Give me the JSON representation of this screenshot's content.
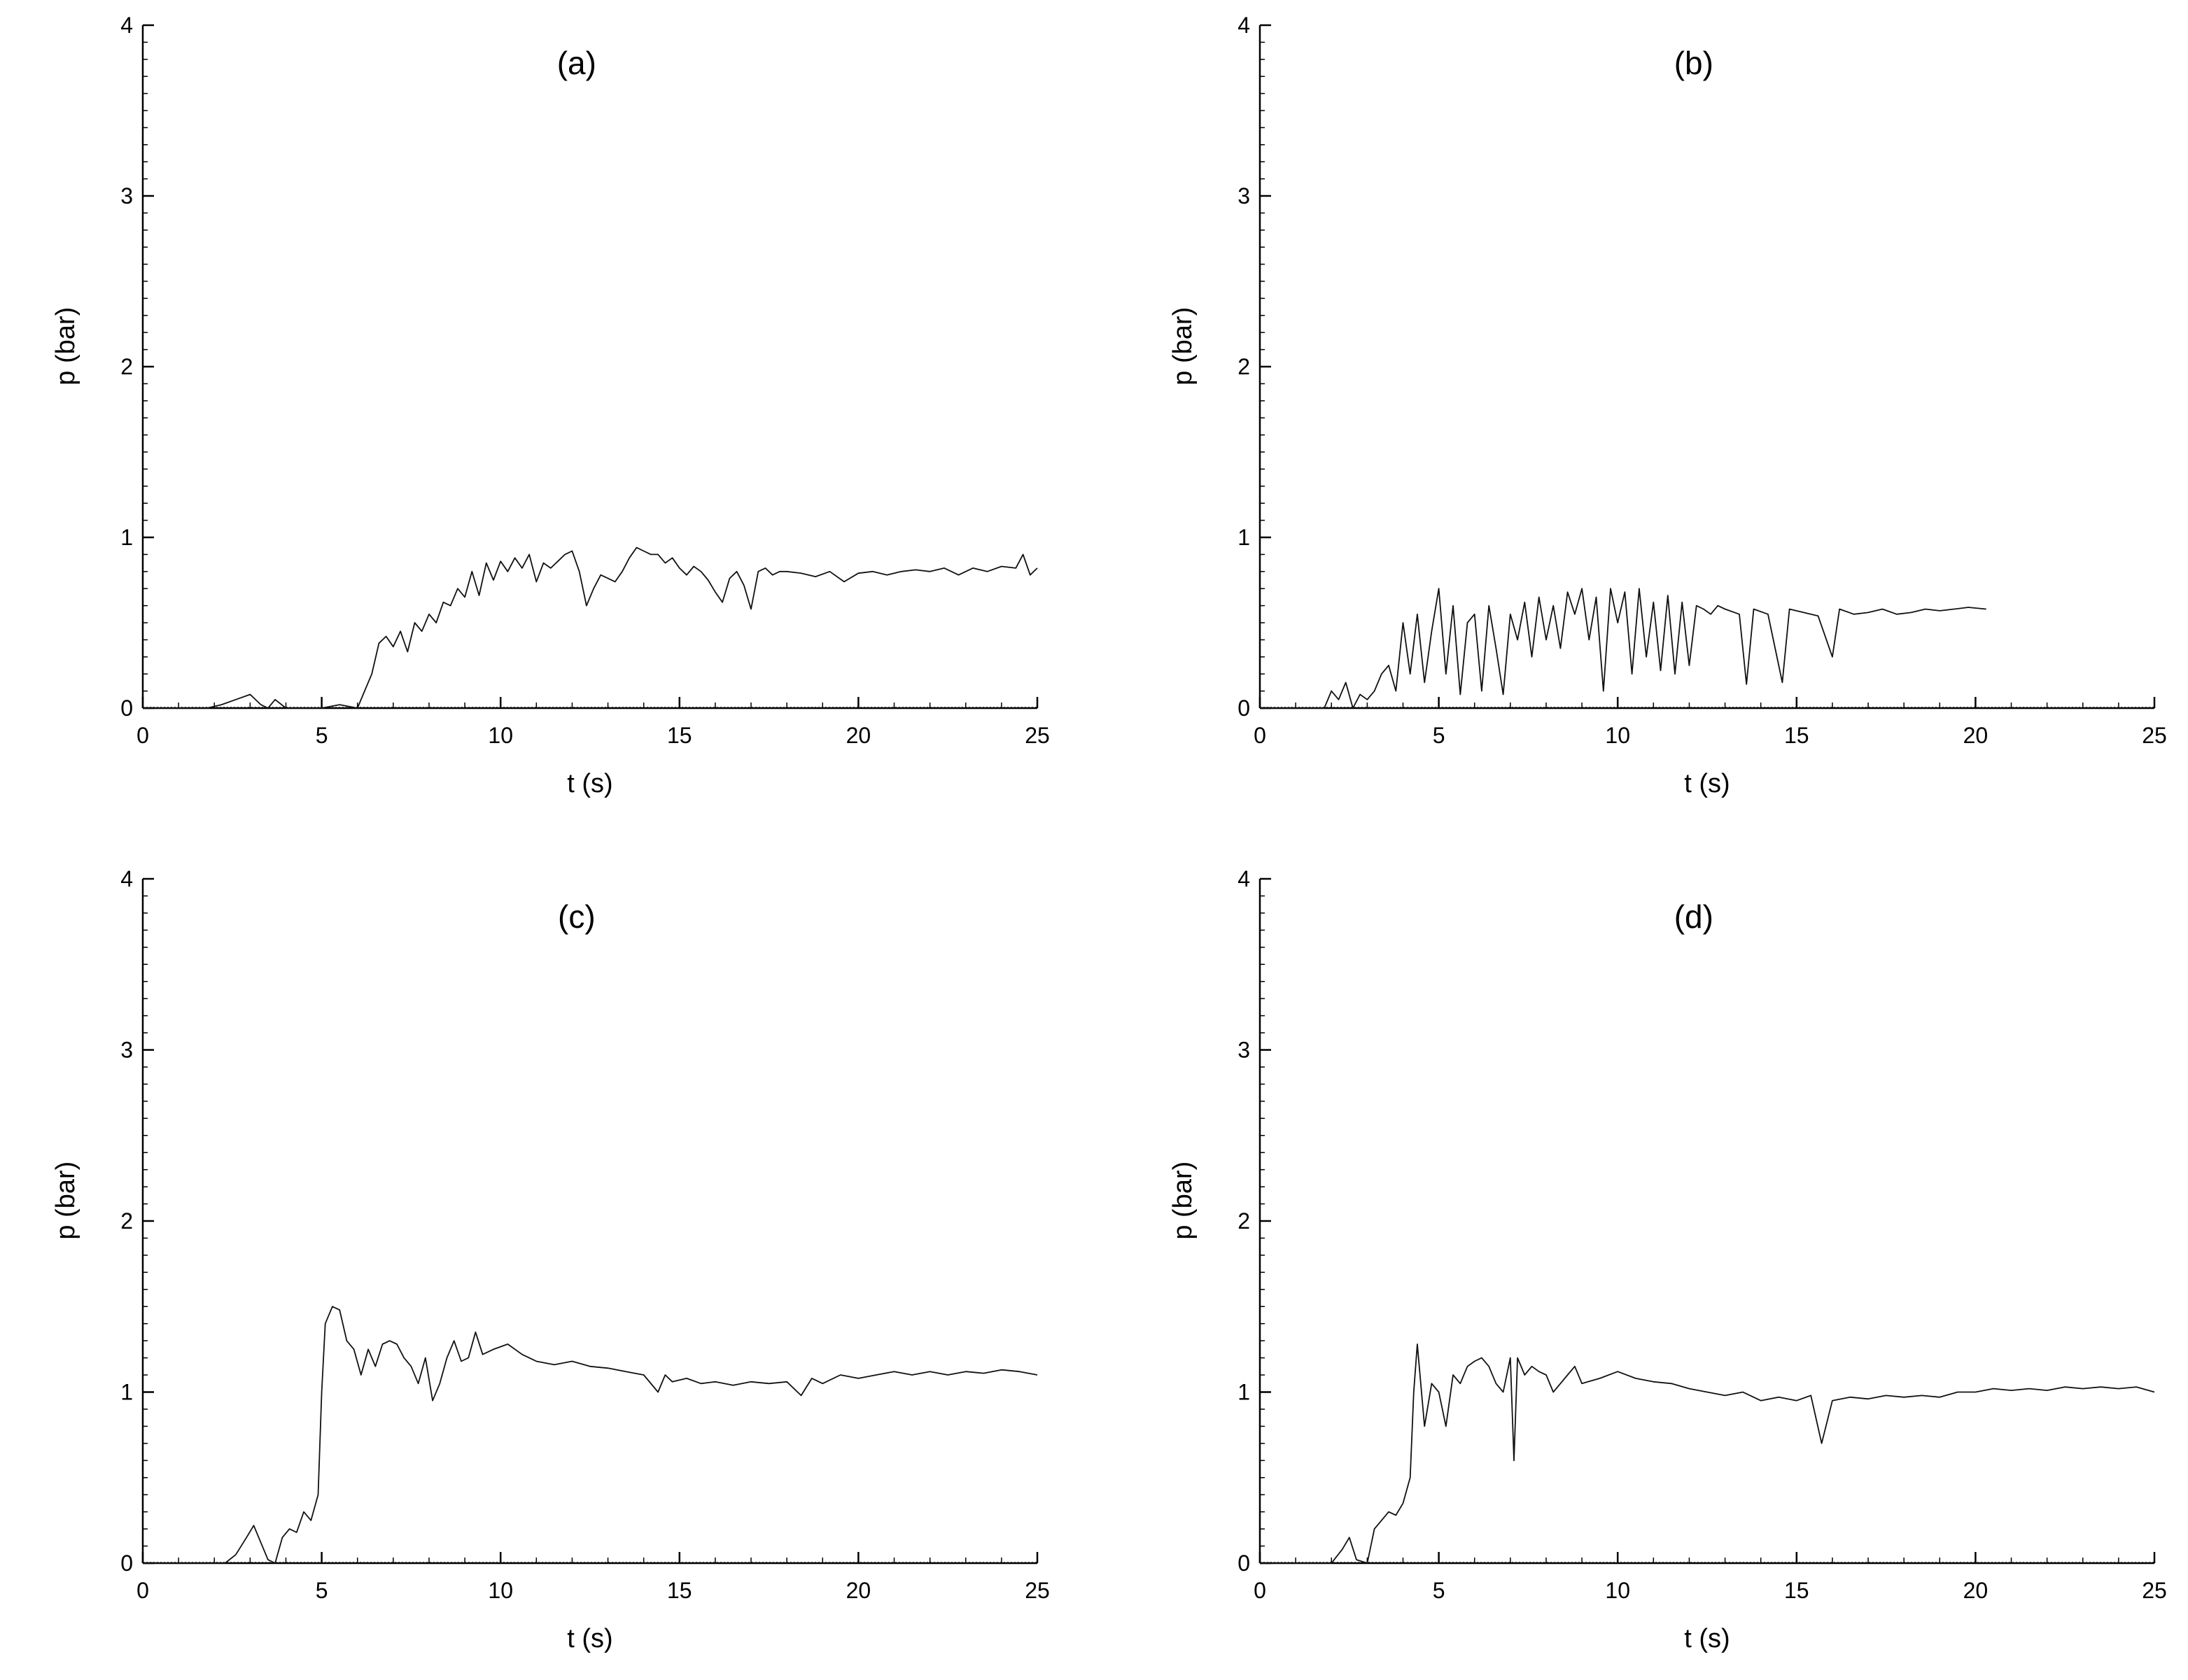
{
  "chart_data": [
    {
      "type": "line",
      "title": "(a)",
      "xlabel": "t (s)",
      "ylabel": "p (bar)",
      "xlim": [
        0,
        25
      ],
      "ylim": [
        0,
        4
      ],
      "xticks": [
        0,
        5,
        10,
        15,
        20,
        25
      ],
      "yticks": [
        0,
        1,
        2,
        3,
        4
      ],
      "grid": false,
      "series": [
        {
          "x": [
            0,
            1.8,
            2.2,
            2.6,
            3.0,
            3.3,
            3.5,
            3.7,
            4.0,
            5.0,
            5.5,
            6.0,
            6.2,
            6.4,
            6.6,
            6.8,
            7.0,
            7.2,
            7.4,
            7.6,
            7.8,
            8.0,
            8.2,
            8.4,
            8.6,
            8.8,
            9.0,
            9.2,
            9.4,
            9.6,
            9.8,
            10.0,
            10.2,
            10.4,
            10.6,
            10.8,
            11.0,
            11.2,
            11.4,
            11.6,
            11.8,
            12.0,
            12.2,
            12.4,
            12.6,
            12.8,
            13.0,
            13.2,
            13.4,
            13.6,
            13.8,
            14.0,
            14.2,
            14.4,
            14.6,
            14.8,
            15.0,
            15.2,
            15.4,
            15.6,
            15.8,
            16.0,
            16.2,
            16.4,
            16.6,
            16.8,
            17.0,
            17.2,
            17.4,
            17.6,
            17.8,
            18.0,
            18.4,
            18.8,
            19.2,
            19.6,
            20.0,
            20.4,
            20.8,
            21.2,
            21.6,
            22.0,
            22.4,
            22.8,
            23.2,
            23.6,
            24.0,
            24.4,
            24.6,
            24.8,
            25.0
          ],
          "y": [
            0,
            0,
            0.02,
            0.05,
            0.08,
            0.02,
            0.0,
            0.05,
            0.0,
            0.0,
            0.02,
            0.0,
            0.1,
            0.2,
            0.38,
            0.42,
            0.36,
            0.45,
            0.33,
            0.5,
            0.45,
            0.55,
            0.5,
            0.62,
            0.6,
            0.7,
            0.65,
            0.8,
            0.66,
            0.85,
            0.75,
            0.86,
            0.8,
            0.88,
            0.82,
            0.9,
            0.74,
            0.85,
            0.82,
            0.86,
            0.9,
            0.92,
            0.8,
            0.6,
            0.7,
            0.78,
            0.76,
            0.74,
            0.8,
            0.88,
            0.94,
            0.92,
            0.9,
            0.9,
            0.85,
            0.88,
            0.82,
            0.78,
            0.83,
            0.8,
            0.75,
            0.68,
            0.62,
            0.76,
            0.8,
            0.72,
            0.58,
            0.8,
            0.82,
            0.78,
            0.8,
            0.8,
            0.79,
            0.77,
            0.8,
            0.74,
            0.79,
            0.8,
            0.78,
            0.8,
            0.81,
            0.8,
            0.82,
            0.78,
            0.82,
            0.8,
            0.83,
            0.82,
            0.9,
            0.78,
            0.82
          ]
        }
      ]
    },
    {
      "type": "line",
      "title": "(b)",
      "xlabel": "t (s)",
      "ylabel": "p (bar)",
      "xlim": [
        0,
        25
      ],
      "ylim": [
        0,
        4
      ],
      "xticks": [
        0,
        5,
        10,
        15,
        20,
        25
      ],
      "yticks": [
        0,
        1,
        2,
        3,
        4
      ],
      "grid": false,
      "series": [
        {
          "x": [
            0,
            1.8,
            2.0,
            2.2,
            2.4,
            2.6,
            2.8,
            3.0,
            3.2,
            3.4,
            3.6,
            3.8,
            4.0,
            4.2,
            4.4,
            4.6,
            4.8,
            5.0,
            5.2,
            5.4,
            5.6,
            5.8,
            6.0,
            6.2,
            6.4,
            6.6,
            6.8,
            7.0,
            7.2,
            7.4,
            7.6,
            7.8,
            8.0,
            8.2,
            8.4,
            8.6,
            8.8,
            9.0,
            9.2,
            9.4,
            9.6,
            9.8,
            10.0,
            10.2,
            10.4,
            10.6,
            10.8,
            11.0,
            11.2,
            11.4,
            11.6,
            11.8,
            12.0,
            12.2,
            12.4,
            12.6,
            12.8,
            13.0,
            13.4,
            13.6,
            13.8,
            14.2,
            14.6,
            14.8,
            15.2,
            15.6,
            16.0,
            16.2,
            16.6,
            17.0,
            17.4,
            17.8,
            18.2,
            18.6,
            19.0,
            19.4,
            19.8,
            20.3
          ],
          "y": [
            0,
            0,
            0.1,
            0.05,
            0.15,
            0.0,
            0.08,
            0.05,
            0.1,
            0.2,
            0.25,
            0.1,
            0.5,
            0.2,
            0.55,
            0.15,
            0.45,
            0.7,
            0.2,
            0.6,
            0.08,
            0.5,
            0.55,
            0.1,
            0.6,
            0.35,
            0.08,
            0.55,
            0.4,
            0.62,
            0.3,
            0.65,
            0.4,
            0.6,
            0.35,
            0.68,
            0.55,
            0.7,
            0.4,
            0.65,
            0.1,
            0.7,
            0.5,
            0.68,
            0.2,
            0.7,
            0.3,
            0.62,
            0.22,
            0.66,
            0.2,
            0.62,
            0.25,
            0.6,
            0.58,
            0.55,
            0.6,
            0.58,
            0.55,
            0.14,
            0.58,
            0.55,
            0.15,
            0.58,
            0.56,
            0.54,
            0.3,
            0.58,
            0.55,
            0.56,
            0.58,
            0.55,
            0.56,
            0.58,
            0.57,
            0.58,
            0.59,
            0.58
          ]
        }
      ]
    },
    {
      "type": "line",
      "title": "(c)",
      "xlabel": "t (s)",
      "ylabel": "p (bar)",
      "xlim": [
        0,
        25
      ],
      "ylim": [
        0,
        4
      ],
      "xticks": [
        0,
        5,
        10,
        15,
        20,
        25
      ],
      "yticks": [
        0,
        1,
        2,
        3,
        4
      ],
      "grid": false,
      "series": [
        {
          "x": [
            0,
            2.3,
            2.6,
            2.9,
            3.1,
            3.3,
            3.5,
            3.7,
            3.9,
            4.1,
            4.3,
            4.5,
            4.7,
            4.9,
            5.0,
            5.1,
            5.3,
            5.5,
            5.7,
            5.9,
            6.1,
            6.3,
            6.5,
            6.7,
            6.9,
            7.1,
            7.3,
            7.5,
            7.7,
            7.9,
            8.1,
            8.3,
            8.5,
            8.7,
            8.9,
            9.1,
            9.3,
            9.5,
            9.8,
            10.2,
            10.6,
            11.0,
            11.5,
            12.0,
            12.5,
            13.0,
            13.5,
            14.0,
            14.4,
            14.6,
            14.8,
            15.2,
            15.6,
            16.0,
            16.5,
            17.0,
            17.5,
            18.0,
            18.4,
            18.7,
            19.0,
            19.5,
            20.0,
            20.5,
            21.0,
            21.5,
            22.0,
            22.5,
            23.0,
            23.5,
            24.0,
            24.5,
            25.0
          ],
          "y": [
            0,
            0,
            0.05,
            0.15,
            0.22,
            0.12,
            0.02,
            0.0,
            0.15,
            0.2,
            0.18,
            0.3,
            0.25,
            0.4,
            1.0,
            1.4,
            1.5,
            1.48,
            1.3,
            1.25,
            1.1,
            1.25,
            1.15,
            1.28,
            1.3,
            1.28,
            1.2,
            1.15,
            1.05,
            1.2,
            0.95,
            1.05,
            1.2,
            1.3,
            1.18,
            1.2,
            1.35,
            1.22,
            1.25,
            1.28,
            1.22,
            1.18,
            1.16,
            1.18,
            1.15,
            1.14,
            1.12,
            1.1,
            1.0,
            1.1,
            1.06,
            1.08,
            1.05,
            1.06,
            1.04,
            1.06,
            1.05,
            1.06,
            0.98,
            1.08,
            1.05,
            1.1,
            1.08,
            1.1,
            1.12,
            1.1,
            1.12,
            1.1,
            1.12,
            1.11,
            1.13,
            1.12,
            1.1
          ]
        }
      ]
    },
    {
      "type": "line",
      "title": "(d)",
      "xlabel": "t (s)",
      "ylabel": "p (bar)",
      "xlim": [
        0,
        25
      ],
      "ylim": [
        0,
        4
      ],
      "xticks": [
        0,
        5,
        10,
        15,
        20,
        25
      ],
      "yticks": [
        0,
        1,
        2,
        3,
        4
      ],
      "grid": false,
      "series": [
        {
          "x": [
            0,
            2.0,
            2.3,
            2.5,
            2.7,
            3.0,
            3.2,
            3.4,
            3.6,
            3.8,
            4.0,
            4.2,
            4.3,
            4.4,
            4.6,
            4.8,
            5.0,
            5.2,
            5.4,
            5.6,
            5.8,
            6.0,
            6.2,
            6.4,
            6.6,
            6.8,
            7.0,
            7.1,
            7.2,
            7.4,
            7.6,
            7.8,
            8.0,
            8.2,
            8.4,
            8.6,
            8.8,
            9.0,
            9.5,
            10.0,
            10.5,
            11.0,
            11.5,
            12.0,
            12.5,
            13.0,
            13.5,
            14.0,
            14.5,
            15.0,
            15.4,
            15.7,
            16.0,
            16.5,
            17.0,
            17.5,
            18.0,
            18.5,
            19.0,
            19.5,
            20.0,
            20.5,
            21.0,
            21.5,
            22.0,
            22.5,
            23.0,
            23.5,
            24.0,
            24.5,
            25.0
          ],
          "y": [
            0,
            0,
            0.08,
            0.15,
            0.02,
            0.0,
            0.2,
            0.25,
            0.3,
            0.28,
            0.35,
            0.5,
            1.0,
            1.28,
            0.8,
            1.05,
            1.0,
            0.8,
            1.1,
            1.05,
            1.15,
            1.18,
            1.2,
            1.15,
            1.05,
            1.0,
            1.2,
            0.6,
            1.2,
            1.1,
            1.15,
            1.12,
            1.1,
            1.0,
            1.05,
            1.1,
            1.15,
            1.05,
            1.08,
            1.12,
            1.08,
            1.06,
            1.05,
            1.02,
            1.0,
            0.98,
            1.0,
            0.95,
            0.97,
            0.95,
            0.98,
            0.7,
            0.95,
            0.97,
            0.96,
            0.98,
            0.97,
            0.98,
            0.97,
            1.0,
            1.0,
            1.02,
            1.01,
            1.02,
            1.01,
            1.03,
            1.02,
            1.03,
            1.02,
            1.03,
            1.0
          ]
        }
      ]
    }
  ]
}
